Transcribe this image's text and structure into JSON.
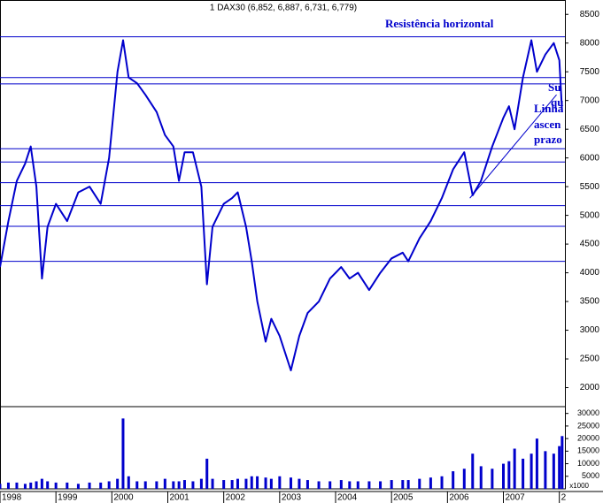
{
  "chart_data": {
    "type": "line",
    "title": "1 DAX30 (6,852, 6,887, 6,731, 6,779)",
    "x": [
      1998.0,
      1998.15,
      1998.3,
      1998.45,
      1998.55,
      1998.65,
      1998.75,
      1998.85,
      1999.0,
      1999.2,
      1999.4,
      1999.6,
      1999.8,
      1999.95,
      2000.1,
      2000.2,
      2000.3,
      2000.45,
      2000.6,
      2000.8,
      2000.95,
      2001.1,
      2001.2,
      2001.3,
      2001.45,
      2001.6,
      2001.7,
      2001.8,
      2002.0,
      2002.15,
      2002.25,
      2002.4,
      2002.5,
      2002.6,
      2002.75,
      2002.85,
      2003.0,
      2003.2,
      2003.35,
      2003.5,
      2003.7,
      2003.9,
      2004.1,
      2004.25,
      2004.4,
      2004.6,
      2004.8,
      2005.0,
      2005.2,
      2005.3,
      2005.5,
      2005.7,
      2005.9,
      2006.1,
      2006.3,
      2006.45,
      2006.6,
      2006.8,
      2007.0,
      2007.1,
      2007.2,
      2007.35,
      2007.5,
      2007.6,
      2007.75,
      2007.9,
      2008.0,
      2008.05
    ],
    "series": [
      {
        "color": "#0000cc",
        "values": [
          4100,
          4900,
          5600,
          5900,
          6200,
          5500,
          3900,
          4800,
          5200,
          4900,
          5400,
          5500,
          5200,
          6000,
          7500,
          8050,
          7400,
          7300,
          7100,
          6800,
          6400,
          6200,
          5600,
          6100,
          6100,
          5500,
          3800,
          4800,
          5200,
          5300,
          5400,
          4800,
          4200,
          3500,
          2800,
          3200,
          2900,
          2300,
          2900,
          3300,
          3500,
          3900,
          4100,
          3900,
          4000,
          3700,
          4000,
          4250,
          4350,
          4200,
          4600,
          4900,
          5300,
          5800,
          6100,
          5350,
          5600,
          6200,
          6700,
          6900,
          6500,
          7400,
          8050,
          7500,
          7800,
          8000,
          7700,
          6800
        ]
      }
    ],
    "volume": {
      "color": "#0000cc",
      "values": [
        2000,
        2500,
        2500,
        2000,
        2500,
        3000,
        4000,
        3000,
        2500,
        2500,
        2000,
        2500,
        2500,
        3000,
        4000,
        28000,
        5000,
        3000,
        3000,
        3000,
        4000,
        3000,
        3000,
        3500,
        3000,
        4000,
        12000,
        4000,
        3500,
        3500,
        4000,
        4000,
        5000,
        5000,
        4500,
        4000,
        5000,
        4500,
        4000,
        3500,
        3000,
        3000,
        3500,
        3000,
        3000,
        3000,
        3000,
        3500,
        3500,
        3500,
        4000,
        4500,
        5000,
        7000,
        8000,
        14000,
        9000,
        8000,
        10000,
        11000,
        16000,
        12000,
        14000,
        20000,
        15000,
        14000,
        17000,
        21000
      ]
    },
    "xlim": [
      1998.0,
      2008.1
    ],
    "xticks": [
      1998,
      1999,
      2000,
      2001,
      2002,
      2003,
      2004,
      2005,
      2006,
      2007,
      {
        "value": 2008,
        "label": "2"
      }
    ],
    "ylim": [
      1700,
      8750
    ],
    "yticks": [
      2000,
      2500,
      3000,
      3500,
      4000,
      4500,
      5000,
      5500,
      6000,
      6500,
      7000,
      7500,
      8000,
      8500
    ],
    "volume_ylim": [
      0,
      32000
    ],
    "volume_yticks": [
      5000,
      10000,
      15000,
      20000,
      25000,
      30000
    ],
    "volume_unit": "x1000",
    "levels": [
      8110,
      7400,
      7290,
      6160,
      5930,
      5570,
      5170,
      4810,
      4200
    ],
    "trend_line": {
      "x": [
        2006.4,
        2007.95
      ],
      "values": [
        5300,
        7100
      ]
    },
    "annotations": [
      "Resistência horizontal",
      "Su",
      "qu",
      "Linha",
      "ascen",
      "prazo"
    ]
  }
}
